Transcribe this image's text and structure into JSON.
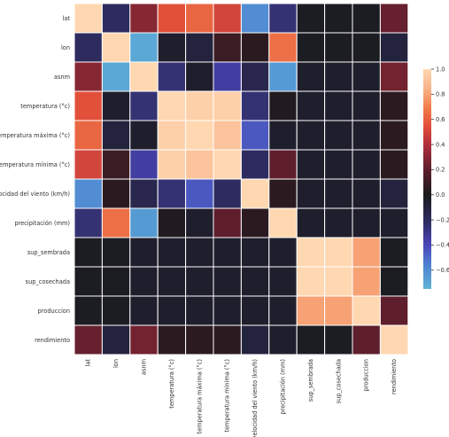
{
  "chart_data": {
    "type": "heatmap",
    "title": "",
    "xlabel": "",
    "ylabel": "",
    "categories": [
      "lat",
      "lon",
      "asnm",
      "temperatura (°c)",
      "temperatura máxima (°c)",
      "temperatura mínima (°c)",
      "velocidad del viento (km/h)",
      "precipitación (mm)",
      "sup_sembrada",
      "sup_cosechada",
      "produccion",
      "rendimiento"
    ],
    "matrix": [
      [
        1.0,
        -0.2,
        0.3,
        0.55,
        0.62,
        0.5,
        -0.6,
        -0.25,
        -0.02,
        -0.02,
        -0.02,
        0.22
      ],
      [
        -0.2,
        1.0,
        -0.7,
        -0.05,
        -0.1,
        0.1,
        0.05,
        0.65,
        -0.02,
        -0.02,
        -0.02,
        -0.1
      ],
      [
        0.3,
        -0.7,
        1.0,
        -0.25,
        -0.05,
        -0.35,
        -0.15,
        -0.65,
        -0.05,
        -0.05,
        -0.05,
        0.25
      ],
      [
        0.55,
        -0.05,
        -0.25,
        1.0,
        0.97,
        0.97,
        -0.25,
        0.02,
        -0.05,
        -0.05,
        -0.05,
        0.05
      ],
      [
        0.62,
        -0.1,
        -0.05,
        0.97,
        1.0,
        0.92,
        -0.45,
        -0.05,
        -0.05,
        -0.05,
        -0.05,
        0.05
      ],
      [
        0.5,
        0.1,
        -0.35,
        0.97,
        0.92,
        1.0,
        -0.2,
        0.2,
        -0.05,
        -0.05,
        -0.05,
        0.05
      ],
      [
        -0.6,
        0.05,
        -0.15,
        -0.25,
        -0.45,
        -0.2,
        1.0,
        0.05,
        -0.05,
        -0.05,
        -0.05,
        -0.1
      ],
      [
        -0.25,
        0.65,
        -0.65,
        0.02,
        -0.05,
        0.2,
        0.05,
        1.0,
        -0.05,
        -0.05,
        -0.05,
        -0.05
      ],
      [
        -0.02,
        -0.02,
        -0.05,
        -0.05,
        -0.05,
        -0.05,
        -0.05,
        -0.05,
        1.0,
        1.0,
        0.8,
        -0.02
      ],
      [
        -0.02,
        -0.02,
        -0.05,
        -0.05,
        -0.05,
        -0.05,
        -0.05,
        -0.05,
        1.0,
        1.0,
        0.8,
        -0.02
      ],
      [
        -0.02,
        -0.02,
        -0.05,
        -0.05,
        -0.05,
        -0.05,
        -0.05,
        -0.05,
        0.8,
        0.8,
        1.0,
        0.2
      ],
      [
        0.22,
        -0.1,
        0.25,
        0.05,
        0.05,
        0.05,
        -0.1,
        -0.05,
        -0.02,
        -0.02,
        0.2,
        1.0
      ]
    ],
    "colorbar": {
      "vmin": -0.75,
      "vmax": 1.0,
      "ticks": [
        1.0,
        0.8,
        0.6,
        0.4,
        0.2,
        0.0,
        -0.2,
        -0.4,
        -0.6
      ],
      "tick_labels": [
        "1.0",
        "0.8",
        "0.6",
        "0.4",
        "0.2",
        "0.0",
        "−0.2",
        "−0.4",
        "−0.6"
      ],
      "colormap": "icefire",
      "stops": [
        [
          -0.75,
          "#5fb4d6"
        ],
        [
          -0.55,
          "#4d7fd0"
        ],
        [
          -0.4,
          "#4a45b8"
        ],
        [
          -0.2,
          "#2e2b5e"
        ],
        [
          0.0,
          "#1a1a1c"
        ],
        [
          0.2,
          "#5e1e2c"
        ],
        [
          0.4,
          "#b02f3c"
        ],
        [
          0.55,
          "#e2503a"
        ],
        [
          0.7,
          "#f27f4c"
        ],
        [
          0.85,
          "#f8b48a"
        ],
        [
          1.0,
          "#ffd7b1"
        ]
      ]
    },
    "grid_color": "#ffffff",
    "grid": true
  }
}
